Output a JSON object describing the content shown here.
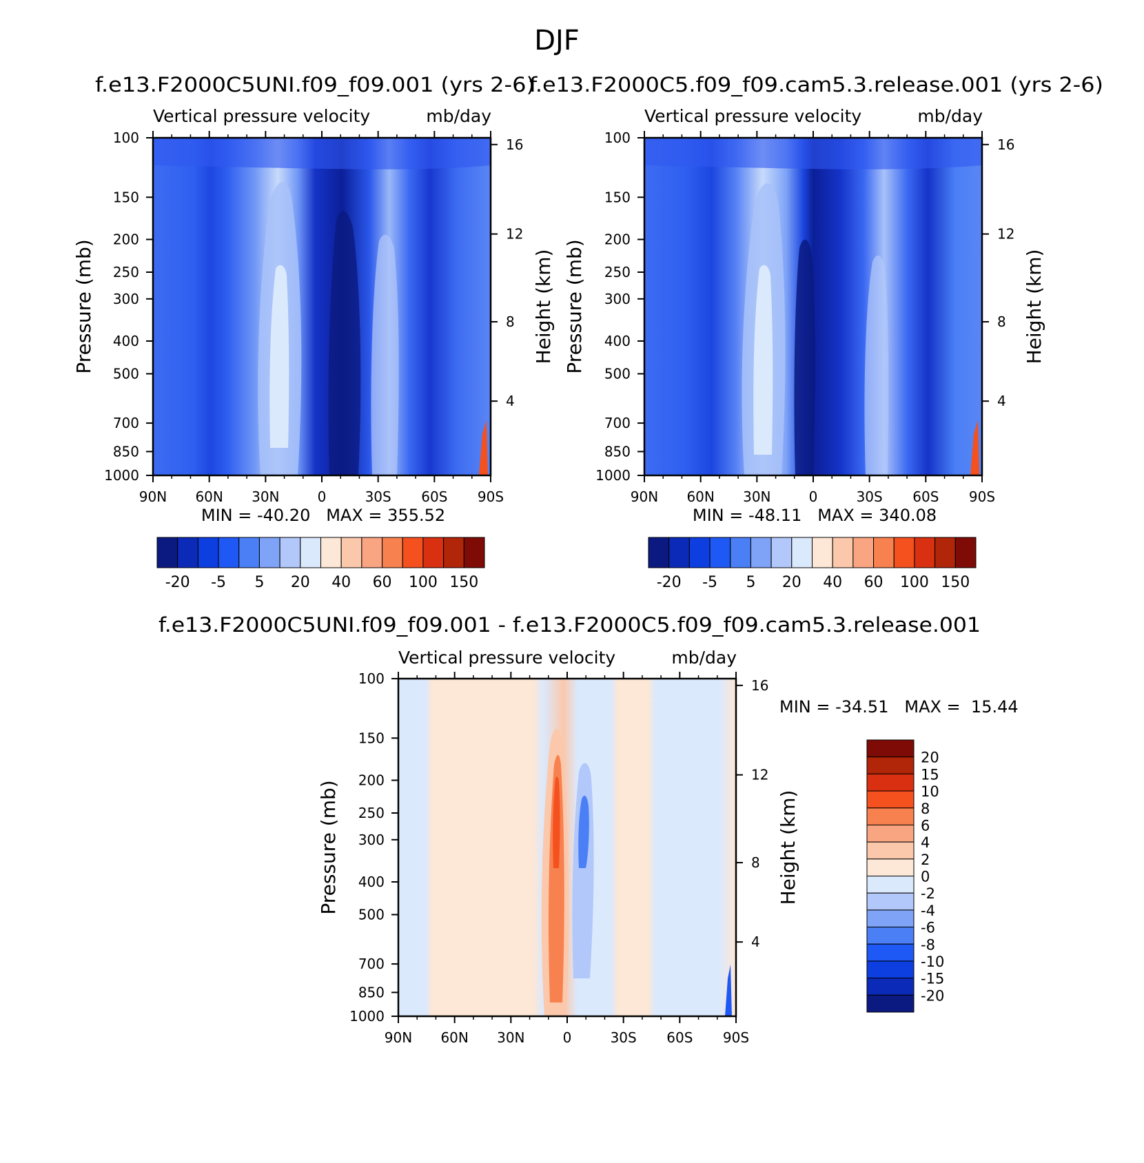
{
  "figure_title": "DJF",
  "chart_data": [
    {
      "type": "heatmap",
      "panel": "top-left",
      "case_title": "f.e13.F2000C5UNI.f09_f09.001 (yrs 2-6)",
      "title": "Vertical pressure velocity",
      "units": "mb/day",
      "xlabel": "",
      "ylabel": "Pressure (mb)",
      "y2label": "Height (km)",
      "x_ticks": [
        "90N",
        "60N",
        "30N",
        "0",
        "30S",
        "60S",
        "90S"
      ],
      "y_ticks": [
        "100",
        "150",
        "200",
        "250",
        "300",
        "400",
        "500",
        "700",
        "850",
        "1000"
      ],
      "y_tick_values": [
        100,
        150,
        200,
        250,
        300,
        400,
        500,
        700,
        850,
        1000
      ],
      "y2_ticks": [
        "16",
        "12",
        "8",
        "4"
      ],
      "ylim": [
        1000,
        100
      ],
      "stats": "MIN = -40.20   MAX = 355.52",
      "min": -40.2,
      "max": 355.52,
      "colorbar_labels": [
        "-20",
        "-5",
        "5",
        "20",
        "40",
        "60",
        "100",
        "150"
      ],
      "colorbar_colors": [
        "#0b1a80",
        "#0b2ab8",
        "#0d3ee0",
        "#1f59f5",
        "#4a7ff6",
        "#7ea3f7",
        "#b2c8fa",
        "#dbe9fd",
        "#fde7d6",
        "#fbc8ab",
        "#f9a582",
        "#f7814f",
        "#f4511e",
        "#d83010",
        "#b12508",
        "#7e0b06"
      ],
      "colorbar_orientation": "horizontal"
    },
    {
      "type": "heatmap",
      "panel": "top-right",
      "case_title": "f.e13.F2000C5.f09_f09.cam5.3.release.001 (yrs 2-6)",
      "title": "Vertical pressure velocity",
      "units": "mb/day",
      "xlabel": "",
      "ylabel": "Pressure (mb)",
      "y2label": "Height (km)",
      "x_ticks": [
        "90N",
        "60N",
        "30N",
        "0",
        "30S",
        "60S",
        "90S"
      ],
      "y_ticks": [
        "100",
        "150",
        "200",
        "250",
        "300",
        "400",
        "500",
        "700",
        "850",
        "1000"
      ],
      "y_tick_values": [
        100,
        150,
        200,
        250,
        300,
        400,
        500,
        700,
        850,
        1000
      ],
      "y2_ticks": [
        "16",
        "12",
        "8",
        "4"
      ],
      "ylim": [
        1000,
        100
      ],
      "stats": "MIN = -48.11   MAX = 340.08",
      "min": -48.11,
      "max": 340.08,
      "colorbar_labels": [
        "-20",
        "-5",
        "5",
        "20",
        "40",
        "60",
        "100",
        "150"
      ],
      "colorbar_colors": [
        "#0b1a80",
        "#0b2ab8",
        "#0d3ee0",
        "#1f59f5",
        "#4a7ff6",
        "#7ea3f7",
        "#b2c8fa",
        "#dbe9fd",
        "#fde7d6",
        "#fbc8ab",
        "#f9a582",
        "#f7814f",
        "#f4511e",
        "#d83010",
        "#b12508",
        "#7e0b06"
      ],
      "colorbar_orientation": "horizontal"
    },
    {
      "type": "heatmap",
      "panel": "bottom",
      "case_title": "f.e13.F2000C5UNI.f09_f09.001 - f.e13.F2000C5.f09_f09.cam5.3.release.001",
      "title": "Vertical pressure velocity",
      "units": "mb/day",
      "xlabel": "",
      "ylabel": "Pressure (mb)",
      "y2label": "Height (km)",
      "x_ticks": [
        "90N",
        "60N",
        "30N",
        "0",
        "30S",
        "60S",
        "90S"
      ],
      "y_ticks": [
        "100",
        "150",
        "200",
        "250",
        "300",
        "400",
        "500",
        "700",
        "850",
        "1000"
      ],
      "y_tick_values": [
        100,
        150,
        200,
        250,
        300,
        400,
        500,
        700,
        850,
        1000
      ],
      "y2_ticks": [
        "16",
        "12",
        "8",
        "4"
      ],
      "ylim": [
        1000,
        100
      ],
      "stats": "MIN = -34.51   MAX =  15.44",
      "min": -34.51,
      "max": 15.44,
      "colorbar_labels": [
        "20",
        "15",
        "10",
        "8",
        "6",
        "4",
        "2",
        "0",
        "-2",
        "-4",
        "-6",
        "-8",
        "-10",
        "-15",
        "-20"
      ],
      "colorbar_colors": [
        "#7e0b06",
        "#b12508",
        "#d83010",
        "#f4511e",
        "#f7814f",
        "#f9a582",
        "#fbc8ab",
        "#fde7d6",
        "#dbe9fd",
        "#b2c8fa",
        "#7ea3f7",
        "#4a7ff6",
        "#1f59f5",
        "#0d3ee0",
        "#0b2ab8",
        "#0b1a80"
      ],
      "colorbar_orientation": "vertical"
    }
  ]
}
